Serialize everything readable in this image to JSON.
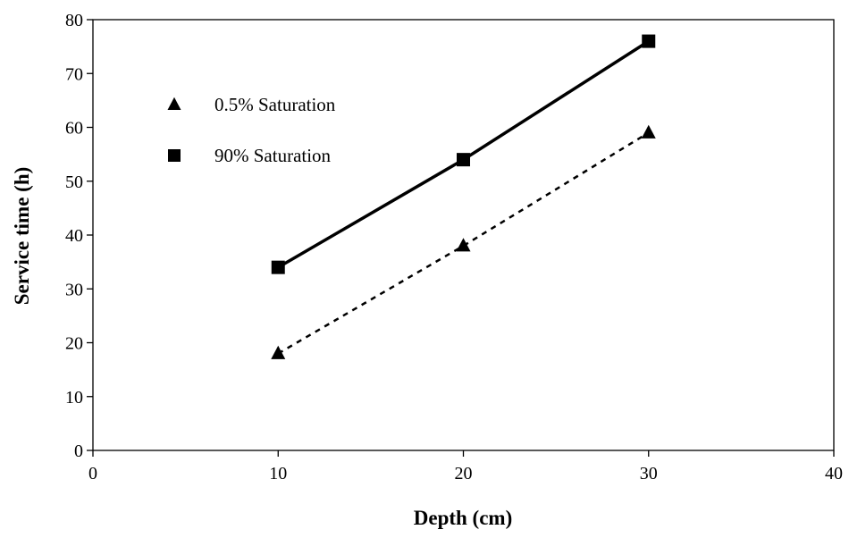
{
  "chart_data": {
    "type": "scatter",
    "xlabel": "Depth (cm)",
    "ylabel": "Service time (h)",
    "xlim": [
      0,
      40
    ],
    "ylim": [
      0,
      80
    ],
    "xticks": [
      "0",
      "10",
      "20",
      "30",
      "40"
    ],
    "yticks": [
      "0",
      "10",
      "20",
      "30",
      "40",
      "50",
      "60",
      "70",
      "80"
    ],
    "grid": false,
    "legend_position": "top-left",
    "series": [
      {
        "name": "0.5% Saturation",
        "marker": "triangle",
        "line_style": "dotted",
        "color": "#000000",
        "x": [
          10,
          20,
          30
        ],
        "y": [
          18,
          38,
          59
        ]
      },
      {
        "name": "90% Saturation",
        "marker": "square",
        "line_style": "solid",
        "color": "#000000",
        "x": [
          10,
          20,
          30
        ],
        "y": [
          34,
          54,
          76
        ]
      }
    ]
  }
}
